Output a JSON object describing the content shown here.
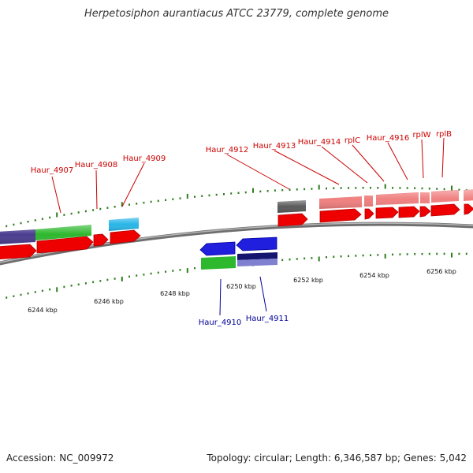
{
  "title": "Herpetosiphon aurantiacus ATCC 23779, complete genome",
  "footer": {
    "accession": "Accession: NC_009972",
    "summary": "Topology: circular; Length: 6,346,587 bp; Genes: 5,042"
  },
  "colors": {
    "top_label": "#cc0000",
    "bottom_label": "#000099",
    "tick": "#2e7d1e",
    "backbone": "#8a8a8a"
  },
  "scale_labels": [
    "6244 kbp",
    "6246 kbp",
    "6248 kbp",
    "6250 kbp",
    "6252 kbp",
    "6254 kbp",
    "6256 kbp"
  ],
  "top_labels": [
    "Haur_4907",
    "Haur_4908",
    "Haur_4909",
    "Haur_4912",
    "Haur_4913",
    "Haur_4914",
    "rplC",
    "Haur_4916",
    "rplW",
    "rplB"
  ],
  "bottom_labels": [
    "Haur_4910",
    "Haur_4911"
  ]
}
